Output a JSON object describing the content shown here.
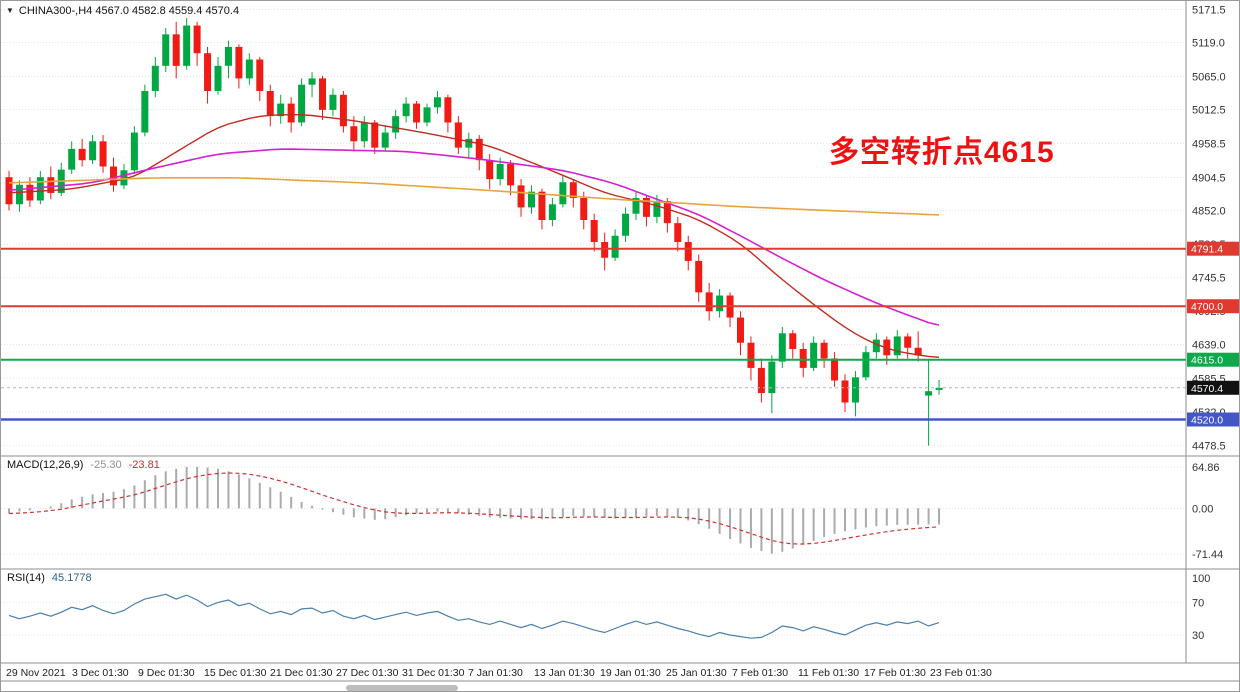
{
  "header": {
    "dropdown_icon_glyph": "▼",
    "symbol": "CHINA300-",
    "timeframe": "H4",
    "symbol_line": "CHINA300-,H4 4567.0 4582.8 4559.4 4570.4",
    "last_bar": {
      "open": "4567.0",
      "high": "4582.8",
      "low": "4559.4",
      "close": "4570.4"
    }
  },
  "annotation": {
    "text": "多空转折点4615",
    "color": "#ee1111"
  },
  "colors": {
    "up_candle": "#00a843",
    "down_candle": "#ee1c14",
    "grid": "#e3e3e3",
    "panel_border": "#8c8c8c",
    "macd_histogram": "#ababab",
    "macd_signal": "#cc3333",
    "rsi_line": "#4a7fae",
    "bid_badge": "#111111",
    "axis_text": "#333333"
  },
  "chart_data": [
    {
      "type": "candlestick",
      "name": "CHINA300- H4 price panel",
      "ylim": [
        4462,
        5185
      ],
      "y_ticks": [
        5171.5,
        5119.0,
        5065.0,
        5012.5,
        4958.5,
        4904.5,
        4852.0,
        4798.5,
        4745.5,
        4692.5,
        4639.0,
        4585.5,
        4532.0,
        4478.5
      ],
      "x_labels": [
        [
          "29 Nov 2021",
          5
        ],
        [
          "3 Dec 01:30",
          71
        ],
        [
          "9 Dec 01:30",
          137
        ],
        [
          "15 Dec 01:30",
          203
        ],
        [
          "21 Dec 01:30",
          269
        ],
        [
          "27 Dec 01:30",
          335
        ],
        [
          "31 Dec 01:30",
          401
        ],
        [
          "7 Jan 01:30",
          467
        ],
        [
          "13 Jan 01:30",
          533
        ],
        [
          "19 Jan 01:30",
          599
        ],
        [
          "25 Jan 01:30",
          665
        ],
        [
          "7 Feb 01:30",
          731
        ],
        [
          "11 Feb 01:30",
          797
        ],
        [
          "17 Feb 01:30",
          863
        ],
        [
          "23 Feb 01:30",
          929
        ]
      ],
      "candles": [
        [
          4905,
          4915,
          4852,
          4862
        ],
        [
          4862,
          4900,
          4850,
          4893
        ],
        [
          4893,
          4905,
          4858,
          4868
        ],
        [
          4868,
          4915,
          4862,
          4905
        ],
        [
          4905,
          4922,
          4870,
          4880
        ],
        [
          4880,
          4928,
          4875,
          4917
        ],
        [
          4917,
          4962,
          4910,
          4950
        ],
        [
          4950,
          4966,
          4922,
          4932
        ],
        [
          4932,
          4972,
          4926,
          4962
        ],
        [
          4962,
          4972,
          4912,
          4922
        ],
        [
          4922,
          4936,
          4882,
          4892
        ],
        [
          4892,
          4926,
          4886,
          4916
        ],
        [
          4916,
          4986,
          4910,
          4976
        ],
        [
          4976,
          5052,
          4970,
          5042
        ],
        [
          5042,
          5096,
          5032,
          5082
        ],
        [
          5082,
          5142,
          5072,
          5132
        ],
        [
          5132,
          5152,
          5062,
          5082
        ],
        [
          5082,
          5158,
          5076,
          5146
        ],
        [
          5146,
          5152,
          5082,
          5102
        ],
        [
          5102,
          5112,
          5022,
          5042
        ],
        [
          5042,
          5096,
          5036,
          5082
        ],
        [
          5082,
          5122,
          5062,
          5112
        ],
        [
          5112,
          5116,
          5046,
          5062
        ],
        [
          5062,
          5102,
          5052,
          5092
        ],
        [
          5092,
          5096,
          5026,
          5042
        ],
        [
          5042,
          5052,
          4986,
          5002
        ],
        [
          5002,
          5036,
          4990,
          5022
        ],
        [
          5022,
          5032,
          4976,
          4992
        ],
        [
          4992,
          5062,
          4986,
          5052
        ],
        [
          5052,
          5072,
          5032,
          5062
        ],
        [
          5062,
          5066,
          4996,
          5012
        ],
        [
          5012,
          5046,
          5002,
          5036
        ],
        [
          5036,
          5042,
          4976,
          4986
        ],
        [
          4986,
          5002,
          4946,
          4962
        ],
        [
          4962,
          5002,
          4952,
          4992
        ],
        [
          4992,
          4996,
          4942,
          4952
        ],
        [
          4952,
          4986,
          4946,
          4976
        ],
        [
          4976,
          5012,
          4966,
          5002
        ],
        [
          5002,
          5032,
          4992,
          5022
        ],
        [
          5022,
          5026,
          4982,
          4992
        ],
        [
          4992,
          5022,
          4986,
          5016
        ],
        [
          5016,
          5042,
          5006,
          5032
        ],
        [
          5032,
          5036,
          4976,
          4992
        ],
        [
          4992,
          5002,
          4942,
          4952
        ],
        [
          4952,
          4976,
          4936,
          4966
        ],
        [
          4966,
          4972,
          4916,
          4932
        ],
        [
          4932,
          4942,
          4886,
          4902
        ],
        [
          4902,
          4936,
          4892,
          4926
        ],
        [
          4926,
          4932,
          4876,
          4892
        ],
        [
          4892,
          4902,
          4842,
          4857
        ],
        [
          4857,
          4892,
          4847,
          4882
        ],
        [
          4882,
          4887,
          4822,
          4837
        ],
        [
          4837,
          4872,
          4827,
          4862
        ],
        [
          4862,
          4907,
          4857,
          4897
        ],
        [
          4897,
          4902,
          4857,
          4872
        ],
        [
          4872,
          4882,
          4822,
          4837
        ],
        [
          4837,
          4847,
          4787,
          4802
        ],
        [
          4802,
          4817,
          4757,
          4777
        ],
        [
          4777,
          4822,
          4772,
          4812
        ],
        [
          4812,
          4857,
          4802,
          4847
        ],
        [
          4847,
          4882,
          4837,
          4872
        ],
        [
          4872,
          4877,
          4827,
          4842
        ],
        [
          4842,
          4877,
          4832,
          4867
        ],
        [
          4867,
          4872,
          4817,
          4832
        ],
        [
          4832,
          4842,
          4787,
          4802
        ],
        [
          4802,
          4812,
          4757,
          4772
        ],
        [
          4772,
          4782,
          4707,
          4722
        ],
        [
          4722,
          4737,
          4677,
          4692
        ],
        [
          4692,
          4727,
          4682,
          4717
        ],
        [
          4717,
          4722,
          4667,
          4682
        ],
        [
          4682,
          4692,
          4622,
          4642
        ],
        [
          4642,
          4652,
          4582,
          4602
        ],
        [
          4602,
          4617,
          4547,
          4562
        ],
        [
          4562,
          4622,
          4530,
          4612
        ],
        [
          4612,
          4667,
          4602,
          4657
        ],
        [
          4657,
          4662,
          4617,
          4632
        ],
        [
          4632,
          4642,
          4587,
          4602
        ],
        [
          4602,
          4652,
          4597,
          4642
        ],
        [
          4642,
          4647,
          4602,
          4617
        ],
        [
          4617,
          4627,
          4572,
          4582
        ],
        [
          4582,
          4592,
          4532,
          4547
        ],
        [
          4547,
          4597,
          4525,
          4587
        ],
        [
          4587,
          4637,
          4582,
          4627
        ],
        [
          4627,
          4657,
          4617,
          4647
        ],
        [
          4647,
          4652,
          4607,
          4622
        ],
        [
          4622,
          4662,
          4617,
          4652
        ],
        [
          4652,
          4657,
          4617,
          4634
        ],
        [
          4634,
          4660,
          4612,
          4622
        ],
        [
          4558,
          4614,
          4478.5,
          4565
        ],
        [
          4567,
          4582.8,
          4559.4,
          4570.4
        ]
      ],
      "ma_lines": [
        {
          "name": "fast-red",
          "color": "#c22a1f",
          "width": 1.4,
          "anchors": [
            [
              0,
              4880
            ],
            [
              6,
              4886
            ],
            [
              12,
              4905
            ],
            [
              16,
              4945
            ],
            [
              20,
              4985
            ],
            [
              24,
              5003
            ],
            [
              28,
              5005
            ],
            [
              33,
              4995
            ],
            [
              40,
              4975
            ],
            [
              46,
              4955
            ],
            [
              52,
              4915
            ],
            [
              57,
              4880
            ],
            [
              62,
              4860
            ],
            [
              66,
              4838
            ],
            [
              70,
              4800
            ],
            [
              74,
              4742
            ],
            [
              78,
              4690
            ],
            [
              81,
              4655
            ],
            [
              84,
              4632
            ],
            [
              86,
              4625
            ],
            [
              89,
              4618
            ]
          ]
        },
        {
          "name": "mid-magenta",
          "color": "#d321d3",
          "width": 1.6,
          "anchors": [
            [
              0,
              4884
            ],
            [
              8,
              4896
            ],
            [
              14,
              4920
            ],
            [
              20,
              4942
            ],
            [
              26,
              4950
            ],
            [
              38,
              4946
            ],
            [
              45,
              4934
            ],
            [
              53,
              4916
            ],
            [
              58,
              4895
            ],
            [
              61,
              4876
            ],
            [
              66,
              4846
            ],
            [
              70,
              4812
            ],
            [
              74,
              4776
            ],
            [
              78,
              4742
            ],
            [
              82,
              4712
            ],
            [
              85,
              4692
            ],
            [
              89,
              4668
            ]
          ]
        },
        {
          "name": "slow-orange",
          "color": "#e8a33c",
          "width": 1.6,
          "anchors": [
            [
              0,
              4896
            ],
            [
              14,
              4904
            ],
            [
              22,
              4904
            ],
            [
              34,
              4896
            ],
            [
              46,
              4884
            ],
            [
              58,
              4870
            ],
            [
              70,
              4858
            ],
            [
              80,
              4851
            ],
            [
              89,
              4845
            ]
          ]
        }
      ],
      "levels": [
        {
          "price": 4791.4,
          "label": "4791.4",
          "color": "#e03a30",
          "width": 2
        },
        {
          "price": 4700.0,
          "label": "4700.0",
          "color": "#e03a30",
          "width": 2
        },
        {
          "price": 4615.0,
          "label": "4615.0",
          "color": "#0fa84a",
          "width": 2
        },
        {
          "price": 4520.0,
          "label": "4520.0",
          "color": "#4356c8",
          "width": 2.5
        }
      ],
      "bid": {
        "price": 4570.4,
        "label": "4570.4"
      }
    },
    {
      "type": "bar",
      "name": "MACD",
      "label_name": "MACD(12,26,9)",
      "value_main": "-25.30",
      "value_signal": "-23.81",
      "y_ticks": [
        64.86,
        0.0,
        -71.44
      ],
      "ylim": [
        -95,
        82
      ],
      "values": [
        -8,
        -5,
        -3,
        0,
        3,
        8,
        14,
        18,
        22,
        24,
        26,
        30,
        36,
        44,
        52,
        58,
        62,
        65,
        65,
        64,
        62,
        58,
        53,
        47,
        40,
        33,
        26,
        18,
        10,
        4,
        -2,
        -6,
        -10,
        -14,
        -16,
        -18,
        -17,
        -14,
        -11,
        -8,
        -6,
        -5,
        -6,
        -8,
        -10,
        -12,
        -14,
        -15,
        -16,
        -17,
        -17,
        -17,
        -16,
        -14,
        -12,
        -12,
        -13,
        -15,
        -16,
        -15,
        -14,
        -13,
        -12,
        -13,
        -15,
        -19,
        -25,
        -32,
        -40,
        -48,
        -55,
        -62,
        -67,
        -71,
        -68,
        -63,
        -57,
        -51,
        -45,
        -40,
        -36,
        -33,
        -30,
        -28,
        -27,
        -26,
        -25.6,
        -25.4,
        -25.3,
        -25.3
      ]
    },
    {
      "type": "line",
      "name": "RSI",
      "label_name": "RSI(14)",
      "value": "45.1778",
      "y_ticks": [
        100,
        70,
        30
      ],
      "grid_levels": [
        70,
        30
      ],
      "ylim": [
        -4.4,
        111
      ],
      "values": [
        54,
        50,
        53,
        57,
        53,
        58,
        64,
        61,
        66,
        60,
        56,
        60,
        68,
        74,
        77,
        80,
        74,
        79,
        73,
        65,
        70,
        73,
        66,
        69,
        62,
        56,
        59,
        55,
        62,
        63,
        57,
        60,
        53,
        50,
        54,
        49,
        52,
        55,
        58,
        54,
        57,
        59,
        53,
        48,
        50,
        46,
        43,
        47,
        43,
        39,
        43,
        38,
        42,
        47,
        44,
        40,
        36,
        33,
        38,
        43,
        47,
        43,
        46,
        42,
        38,
        35,
        31,
        28,
        33,
        30,
        28,
        26,
        27,
        33,
        41,
        39,
        35,
        40,
        37,
        33,
        30,
        36,
        42,
        45,
        42,
        46,
        44,
        47,
        41,
        45.18
      ]
    }
  ]
}
